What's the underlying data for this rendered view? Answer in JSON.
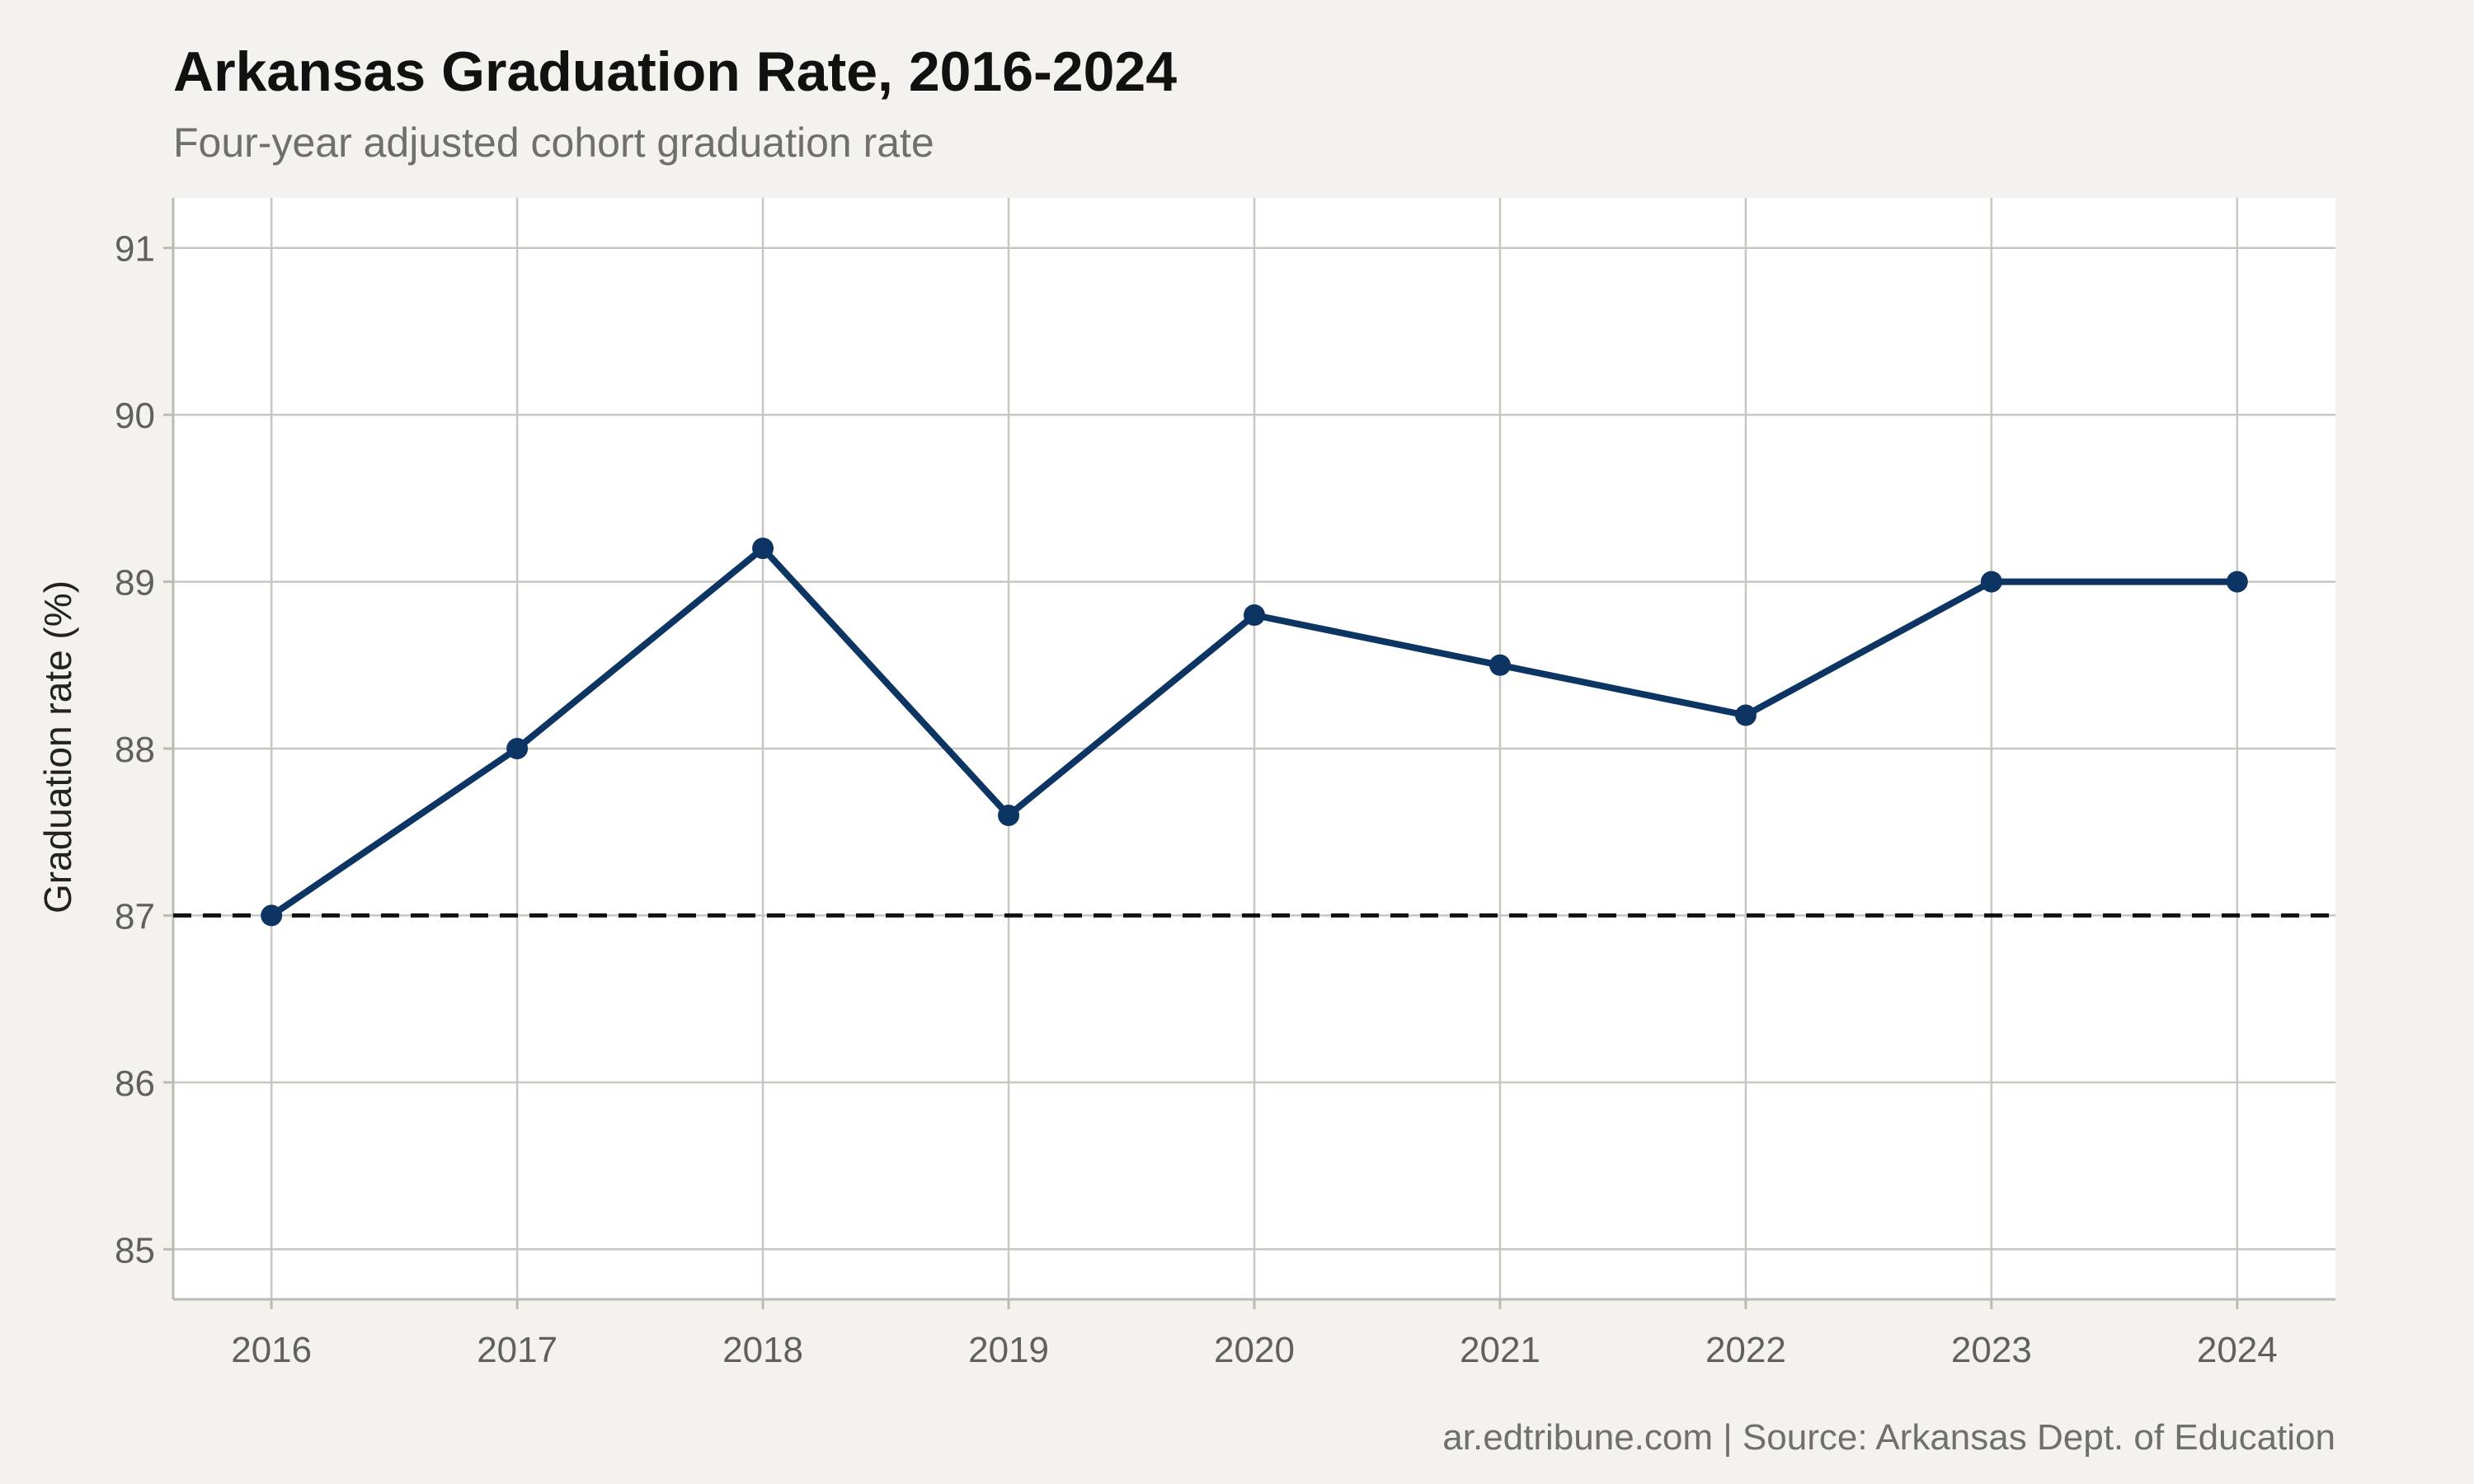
{
  "title": "Arkansas Graduation Rate, 2016-2024",
  "subtitle": "Four-year adjusted cohort graduation rate",
  "caption": "ar.edtribune.com | Source: Arkansas Dept. of Education",
  "colors": {
    "background": "#f4f2ee",
    "panel": "#ffffff",
    "line": "#0d3563",
    "reference_line": "#111111"
  },
  "chart_data": {
    "type": "line",
    "title": "Arkansas Graduation Rate, 2016-2024",
    "subtitle": "Four-year adjusted cohort graduation rate",
    "xlabel": "",
    "ylabel": "Graduation rate (%)",
    "x": [
      2016,
      2017,
      2018,
      2019,
      2020,
      2021,
      2022,
      2023,
      2024
    ],
    "series": [
      {
        "values": [
          87.0,
          88.0,
          89.2,
          87.6,
          88.8,
          88.5,
          88.2,
          89.0,
          89.0
        ]
      }
    ],
    "xlim": [
      2015.6,
      2024.4
    ],
    "ylim": [
      84.7,
      91.3
    ],
    "yticks": [
      85,
      86,
      87,
      88,
      89,
      90,
      91
    ],
    "xticks": [
      2016,
      2017,
      2018,
      2019,
      2020,
      2021,
      2022,
      2023,
      2024
    ],
    "reference_line": {
      "y": 87,
      "style": "dashed"
    },
    "grid": true,
    "legend": "none"
  }
}
